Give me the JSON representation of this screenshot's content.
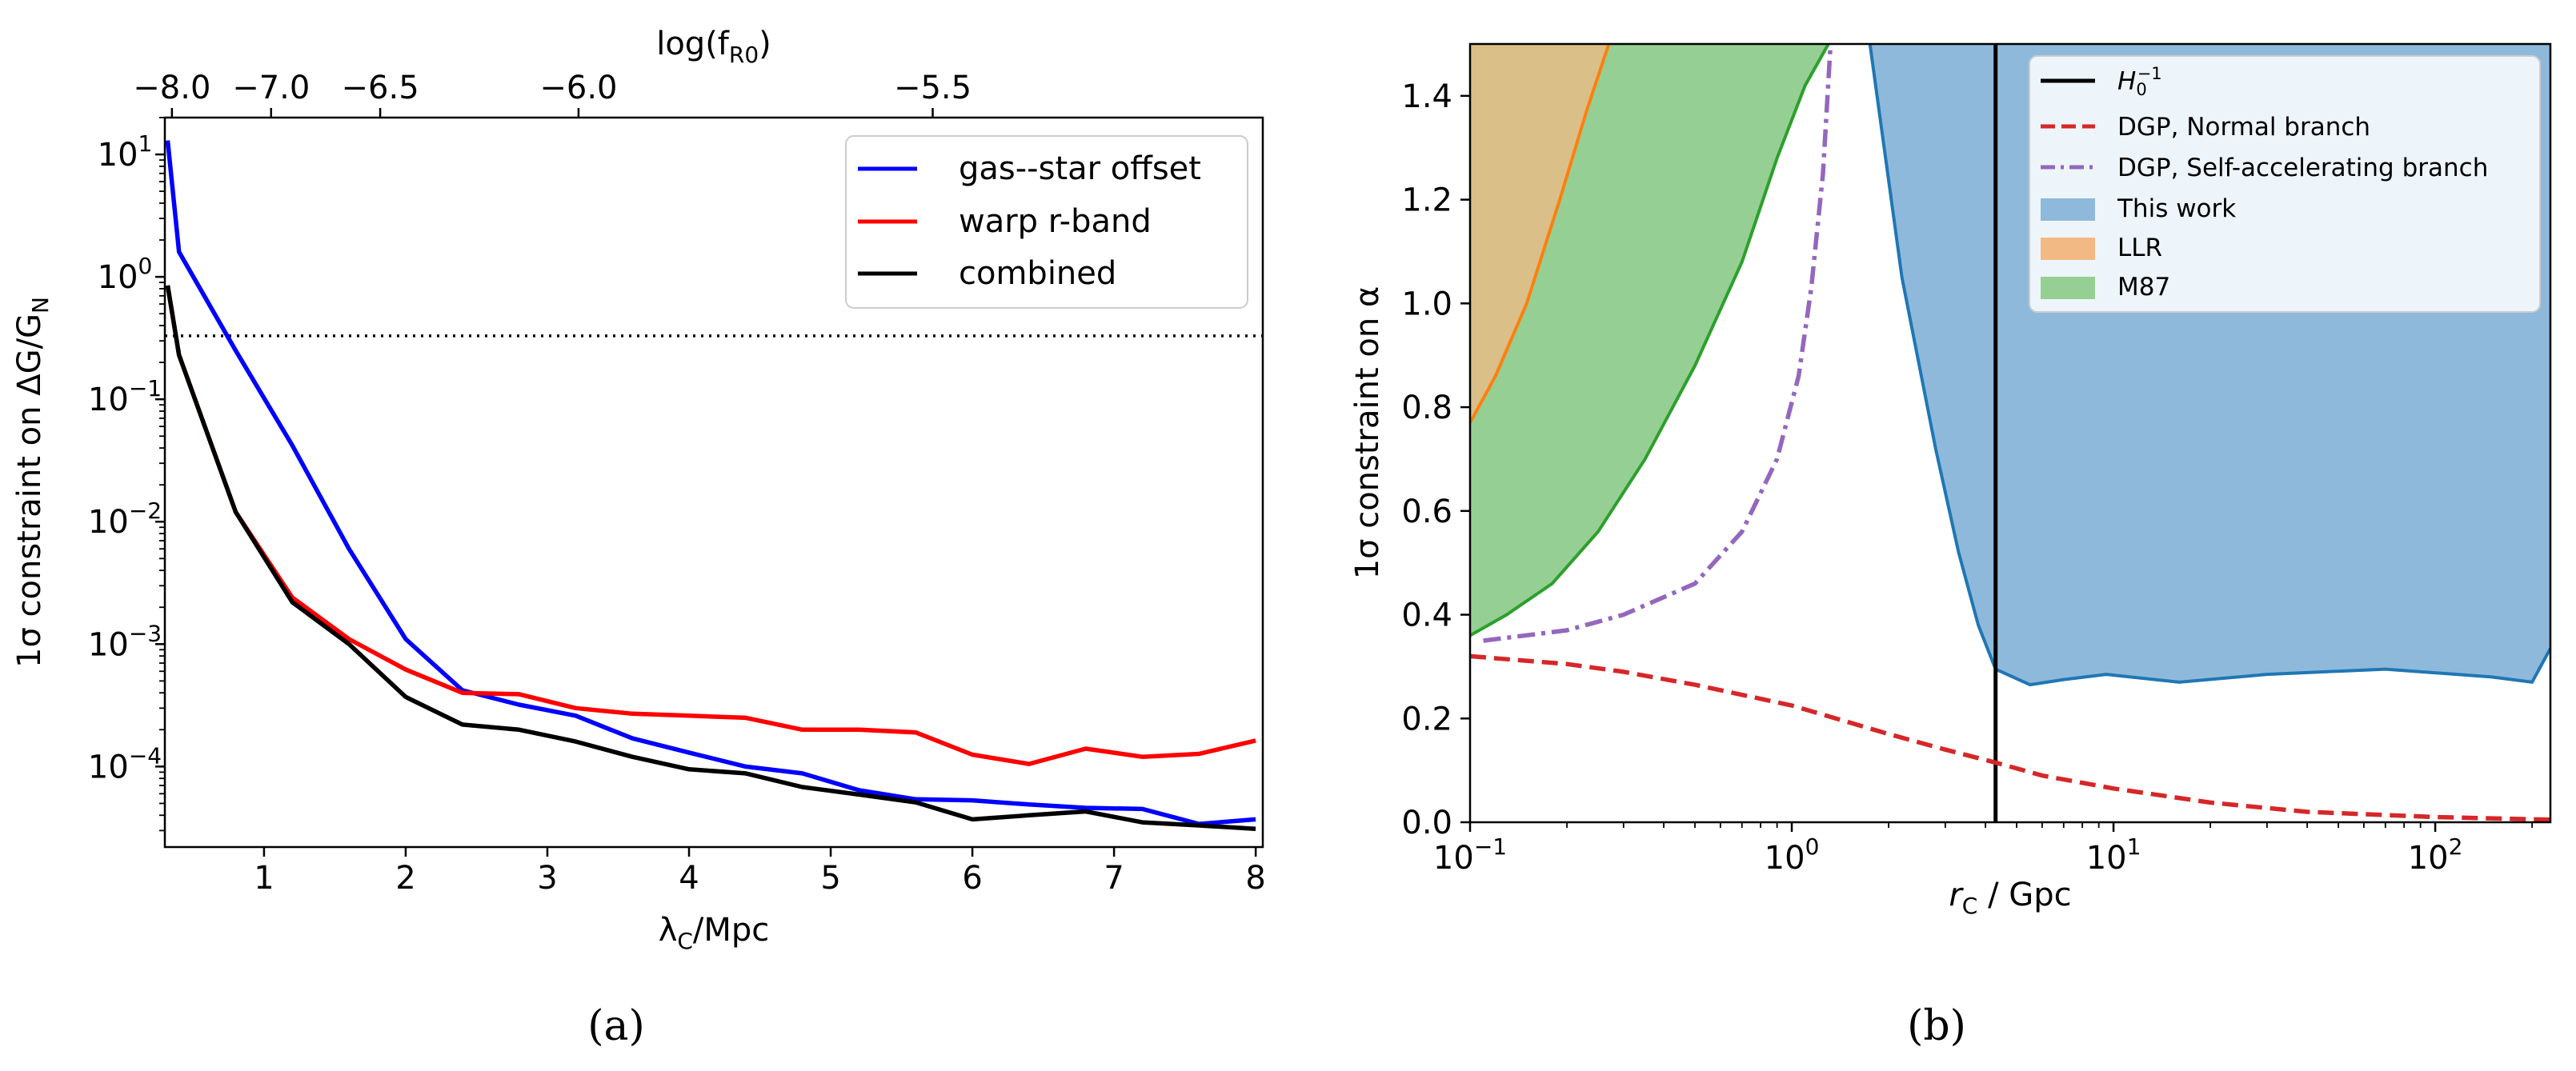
{
  "panels": {
    "a": {
      "caption": "(a)"
    },
    "b": {
      "caption": "(b)"
    }
  },
  "chart_data": [
    {
      "type": "line",
      "panel": "a",
      "title": "",
      "xlabel": "λ_C/Mpc",
      "xlabel_parts": {
        "main": "λ",
        "sub": "C",
        "rest": "/Mpc"
      },
      "ylabel": "1σ constraint on ΔG/G_N",
      "ylabel_parts": {
        "main": "1σ constraint on ΔG/G",
        "sub": "N"
      },
      "yscale": "log",
      "xlim": [
        0.3,
        8.05
      ],
      "ylim": [
        2.2e-05,
        20
      ],
      "xticks": [
        1,
        2,
        3,
        4,
        5,
        6,
        7,
        8
      ],
      "xtick_labels": [
        "1",
        "2",
        "3",
        "4",
        "5",
        "6",
        "7",
        "8"
      ],
      "yticks": [
        0.0001,
        0.001,
        0.01,
        0.1,
        1,
        10
      ],
      "ytick_labels": [
        {
          "base": "10",
          "exp": "−4"
        },
        {
          "base": "10",
          "exp": "−3"
        },
        {
          "base": "10",
          "exp": "−2"
        },
        {
          "base": "10",
          "exp": "−1"
        },
        {
          "base": "10",
          "exp": "0"
        },
        {
          "base": "10",
          "exp": "1"
        }
      ],
      "top_axis": {
        "label": "log(f_R0)",
        "label_parts": {
          "main": "log(f",
          "sub": "R0",
          "rest": ")"
        },
        "ticks": [
          {
            "x": 0.35,
            "label": "−8.0"
          },
          {
            "x": 1.05,
            "label": "−7.0"
          },
          {
            "x": 1.82,
            "label": "−6.5"
          },
          {
            "x": 3.22,
            "label": "−6.0"
          },
          {
            "x": 5.72,
            "label": "−5.5"
          }
        ]
      },
      "hline": {
        "y": 0.33,
        "style": "dotted",
        "color": "#000000"
      },
      "legend_position": "top-right",
      "series": [
        {
          "name": "gas--star offset",
          "color": "#0000ff",
          "x": [
            0.32,
            0.4,
            0.8,
            1.2,
            1.6,
            2.0,
            2.4,
            2.8,
            3.2,
            3.6,
            4.0,
            4.4,
            4.8,
            5.2,
            5.6,
            6.0,
            6.4,
            6.8,
            7.2,
            7.6,
            8.0
          ],
          "y": [
            13,
            1.6,
            0.25,
            0.042,
            0.006,
            0.0011,
            0.00042,
            0.00032,
            0.00026,
            0.00017,
            0.00013,
            0.0001,
            8.8e-05,
            6.4e-05,
            5.4e-05,
            5.3e-05,
            4.9e-05,
            4.6e-05,
            4.5e-05,
            3.4e-05,
            3.7e-05
          ]
        },
        {
          "name": "warp r-band",
          "color": "#ff0000",
          "x": [
            0.32,
            0.4,
            0.8,
            1.2,
            1.6,
            2.0,
            2.4,
            2.8,
            3.2,
            3.6,
            4.0,
            4.4,
            4.8,
            5.2,
            5.6,
            6.0,
            6.4,
            6.8,
            7.2,
            7.6,
            8.0
          ],
          "y": [
            0.85,
            0.23,
            0.012,
            0.0024,
            0.0011,
            0.00062,
            0.0004,
            0.00039,
            0.0003,
            0.00027,
            0.00026,
            0.00025,
            0.0002,
            0.0002,
            0.00019,
            0.000125,
            0.000105,
            0.00014,
            0.00012,
            0.000127,
            0.000163
          ]
        },
        {
          "name": "combined",
          "color": "#000000",
          "x": [
            0.32,
            0.4,
            0.8,
            1.2,
            1.6,
            2.0,
            2.4,
            2.8,
            3.2,
            3.6,
            4.0,
            4.4,
            4.8,
            5.2,
            5.6,
            6.0,
            6.4,
            6.8,
            7.2,
            7.6,
            8.0
          ],
          "y": [
            0.85,
            0.23,
            0.012,
            0.0022,
            0.001,
            0.00037,
            0.00022,
            0.0002,
            0.00016,
            0.00012,
            9.5e-05,
            8.8e-05,
            6.8e-05,
            5.9e-05,
            5.1e-05,
            3.7e-05,
            4e-05,
            4.3e-05,
            3.5e-05,
            3.3e-05,
            3.1e-05
          ]
        }
      ]
    },
    {
      "type": "line",
      "panel": "b",
      "title": "",
      "xlabel": "r_C / Gpc",
      "xlabel_parts": {
        "main": "r",
        "sub": "C",
        "rest": " / Gpc"
      },
      "ylabel": "1σ constraint on α",
      "xscale": "log",
      "xlim": [
        0.1,
        228
      ],
      "ylim": [
        0,
        1.5
      ],
      "xticks": [
        0.1,
        1,
        10,
        100
      ],
      "xtick_labels": [
        {
          "base": "10",
          "exp": "−1"
        },
        {
          "base": "10",
          "exp": "0"
        },
        {
          "base": "10",
          "exp": "1"
        },
        {
          "base": "10",
          "exp": "2"
        }
      ],
      "yticks": [
        0.0,
        0.2,
        0.4,
        0.6,
        0.8,
        1.0,
        1.2,
        1.4
      ],
      "ytick_labels": [
        "0.0",
        "0.2",
        "0.4",
        "0.6",
        "0.8",
        "1.0",
        "1.2",
        "1.4"
      ],
      "legend_position": "top-right",
      "vline": {
        "name": "H_0^{-1}",
        "label_parts": {
          "main": "H",
          "sub": "0",
          "sup": "−1"
        },
        "x": 4.3,
        "color": "#000000"
      },
      "series": [
        {
          "name": "DGP, Normal branch",
          "color": "#d62728",
          "style": "dashed",
          "x": [
            0.1,
            0.2,
            0.3,
            0.5,
            1.0,
            2.0,
            3.0,
            4.3,
            6.0,
            10.0,
            20.0,
            40.0,
            100.0,
            228.0
          ],
          "y": [
            0.32,
            0.305,
            0.29,
            0.265,
            0.225,
            0.17,
            0.14,
            0.115,
            0.09,
            0.065,
            0.038,
            0.02,
            0.01,
            0.005
          ]
        },
        {
          "name": "DGP, Self-accelerating branch",
          "color": "#9467bd",
          "style": "dashdot",
          "x": [
            0.11,
            0.2,
            0.3,
            0.5,
            0.7,
            0.9,
            1.05,
            1.15,
            1.25,
            1.32
          ],
          "y": [
            0.35,
            0.37,
            0.4,
            0.46,
            0.56,
            0.7,
            0.86,
            1.03,
            1.25,
            1.5
          ]
        }
      ],
      "bands": [
        {
          "name": "This work",
          "color": "#1f77b4",
          "fill": "#8fb9da",
          "boundary_x": [
            1.75,
            2.2,
            2.8,
            3.3,
            3.8,
            4.3,
            5.5,
            7.0,
            9.5,
            16.0,
            30.0,
            70.0,
            150.0,
            200.0,
            228.0
          ],
          "boundary_y": [
            1.5,
            1.05,
            0.72,
            0.52,
            0.38,
            0.295,
            0.265,
            0.275,
            0.285,
            0.27,
            0.285,
            0.295,
            0.28,
            0.27,
            0.335
          ]
        },
        {
          "name": "LLR",
          "color": "#ff7f0e",
          "fill": "#f2b985",
          "boundary_x": [
            0.1,
            0.12,
            0.15,
            0.19,
            0.23,
            0.27
          ],
          "boundary_y": [
            0.77,
            0.86,
            1.0,
            1.2,
            1.37,
            1.5
          ]
        },
        {
          "name": "M87",
          "color": "#2ca02c",
          "fill": "#96cf94",
          "boundary_x": [
            0.1,
            0.13,
            0.18,
            0.25,
            0.35,
            0.5,
            0.7,
            0.9,
            1.1,
            1.3
          ],
          "boundary_y": [
            0.36,
            0.4,
            0.46,
            0.56,
            0.7,
            0.88,
            1.08,
            1.28,
            1.42,
            1.5
          ]
        }
      ]
    }
  ]
}
